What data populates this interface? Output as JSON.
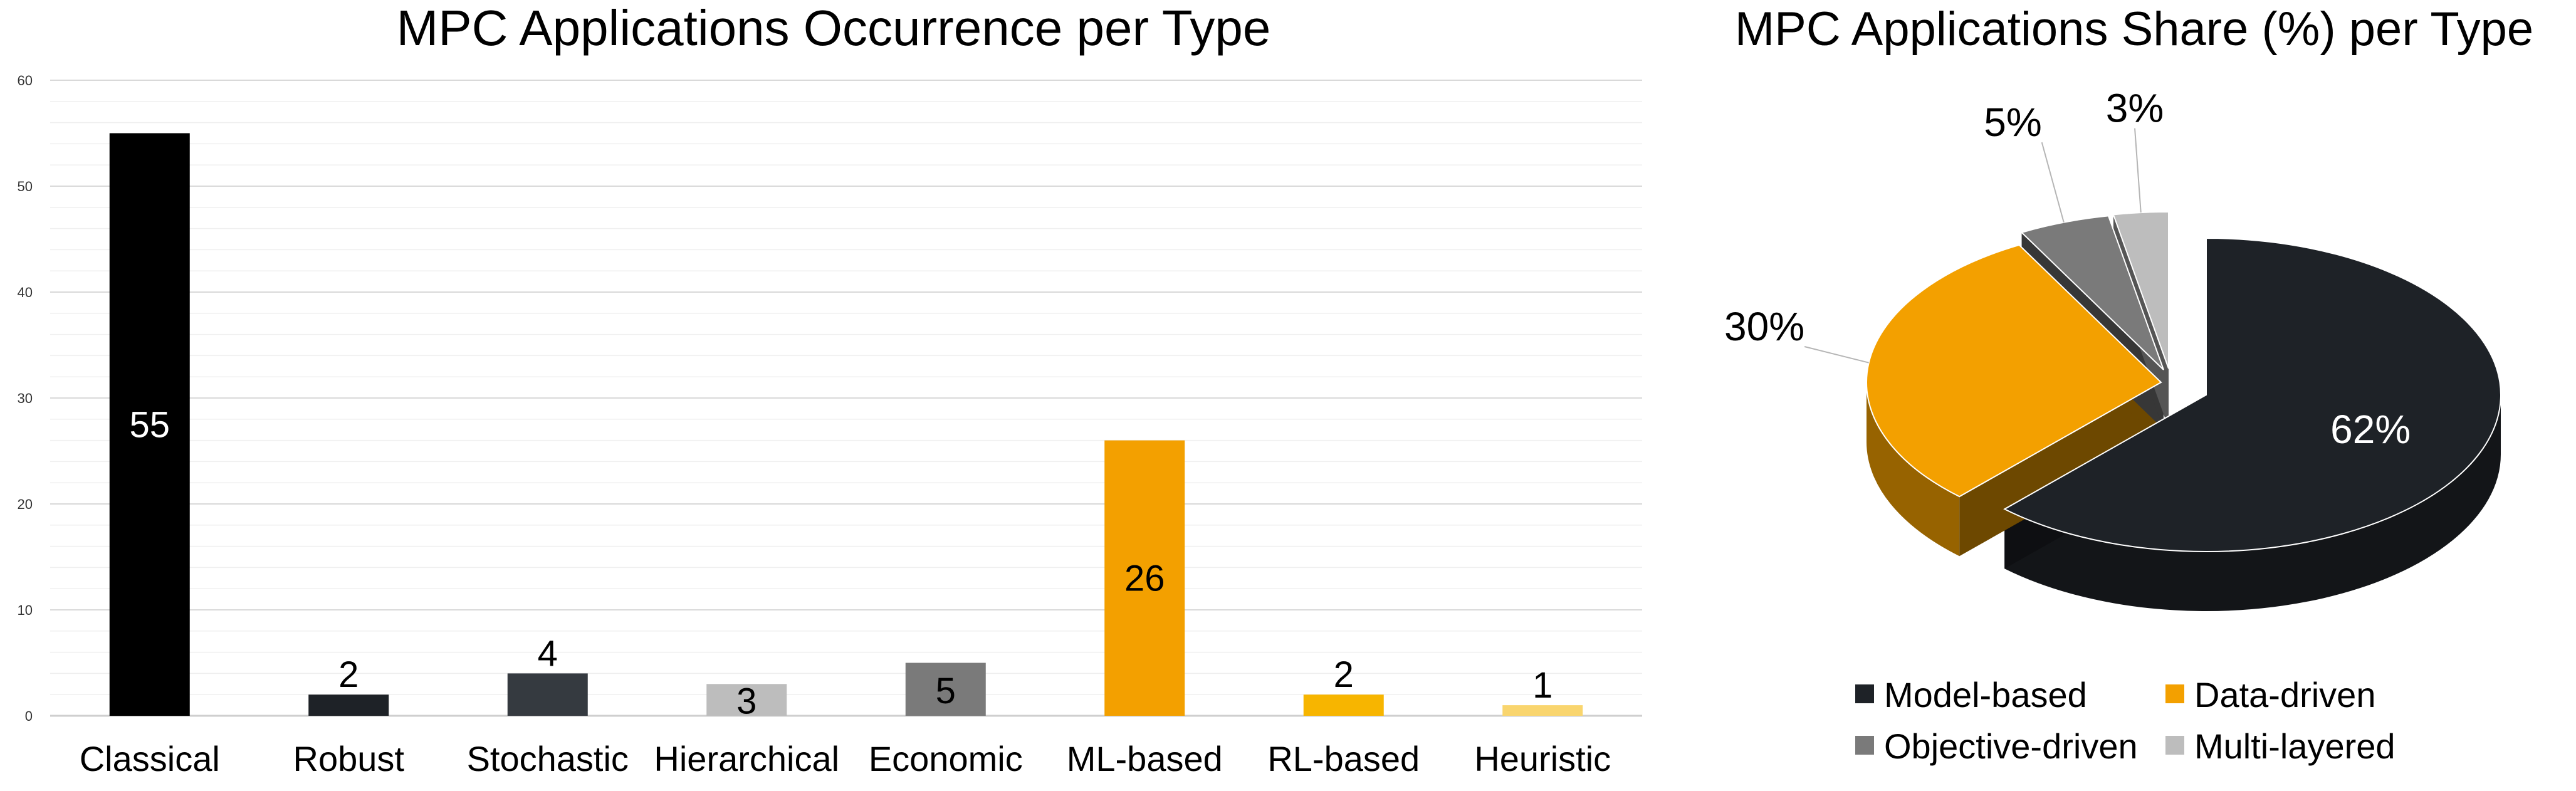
{
  "chart_data": [
    {
      "type": "bar",
      "title": "MPC Applications Occurrence per Type",
      "xlabel": "",
      "ylabel": "",
      "ylim": [
        0,
        60
      ],
      "yticks": [
        "0",
        "10",
        "20",
        "30",
        "40",
        "50",
        "60"
      ],
      "grid": true,
      "categories": [
        "Classical",
        "Robust",
        "Stochastic",
        "Hierarchical",
        "Economic",
        "ML-based",
        "RL-based",
        "Heuristic"
      ],
      "values": [
        55,
        2,
        4,
        3,
        5,
        26,
        2,
        1
      ],
      "data_labels": [
        "55",
        "2",
        "4",
        "3",
        "5",
        "26",
        "2",
        "1"
      ],
      "colors": [
        "#000000",
        "#1e2227",
        "#353a40",
        "#bdbdbd",
        "#7a7a7a",
        "#f3a000",
        "#f7b500",
        "#f9d56e"
      ]
    },
    {
      "type": "pie",
      "title": "MPC Applications Share (%) per Type",
      "labels": [
        "Model-based",
        "Data-driven",
        "Objective-driven",
        "Multi-layered"
      ],
      "values": [
        62,
        30,
        5,
        3
      ],
      "data_labels": [
        "62%",
        "30%",
        "5%",
        "3%"
      ],
      "colors": [
        "#1e2227",
        "#f3a000",
        "#7a7a7a",
        "#bdbdbd"
      ],
      "legend_position": "bottom"
    }
  ]
}
